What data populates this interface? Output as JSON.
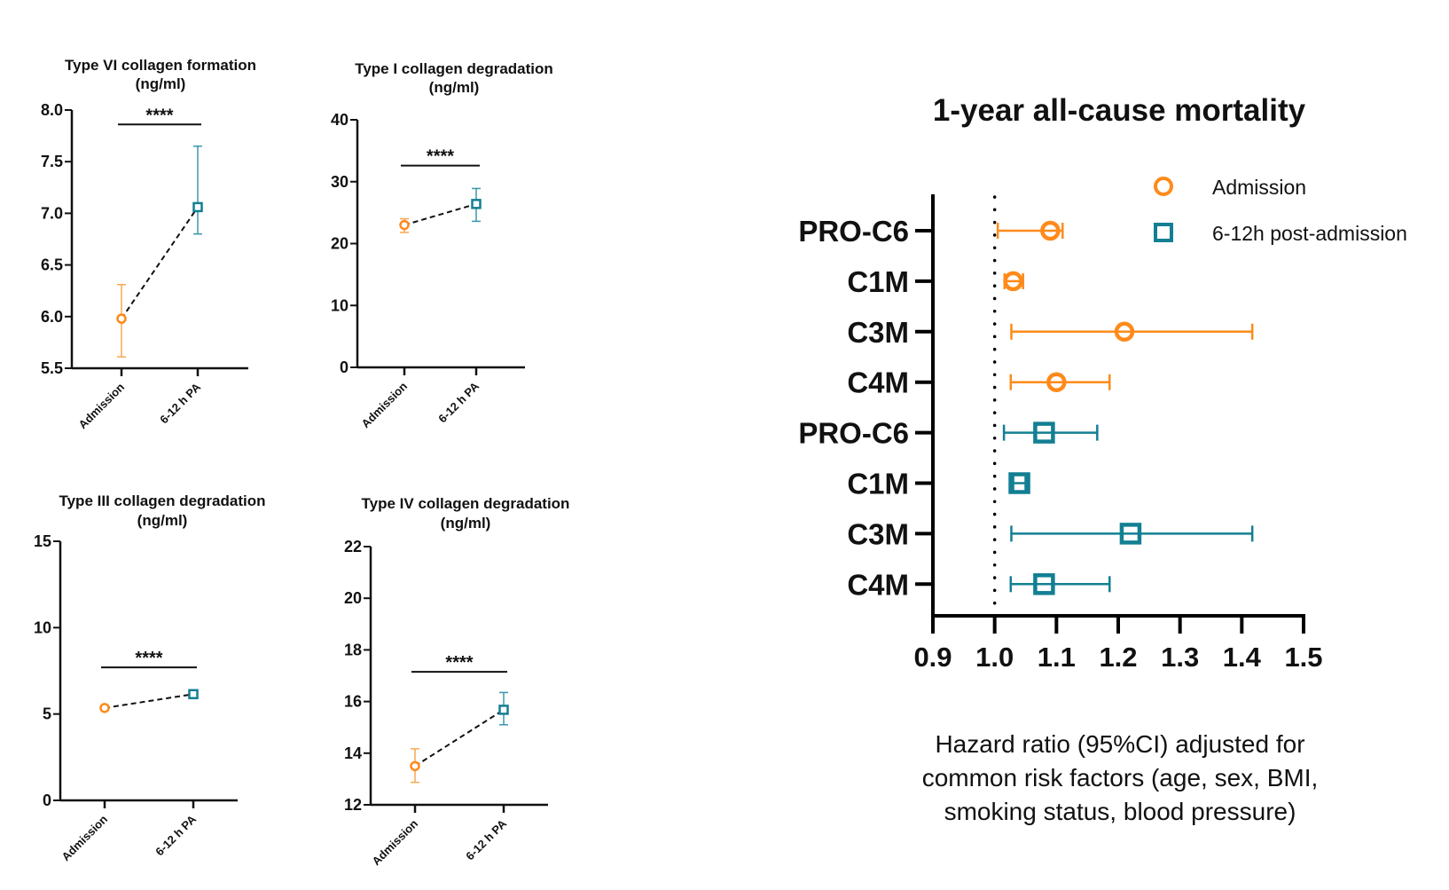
{
  "colors": {
    "admission": "#ff8a1a",
    "admission_light": "#f7a850",
    "post": "#137f93",
    "post_light": "#3a97aa",
    "axis": "#111111"
  },
  "chart_data": [
    {
      "type": "scatter",
      "title": "Type VI collagen formation",
      "subtitle": "(ng/ml)",
      "categories": [
        "Admission",
        "6-12 h PA"
      ],
      "ylim": [
        5.5,
        8.0
      ],
      "yticks": [
        "5.5",
        "6.0",
        "6.5",
        "7.0",
        "7.5",
        "8.0"
      ],
      "series": [
        {
          "name": "Admission",
          "value": 5.98,
          "ci_low": 5.61,
          "ci_high": 6.31
        },
        {
          "name": "6-12 h PA",
          "value": 7.06,
          "ci_low": 6.8,
          "ci_high": 7.65
        }
      ],
      "significance": "****",
      "significance_level": 7.86,
      "connector": "dashed"
    },
    {
      "type": "scatter",
      "title": "Type I collagen degradation",
      "subtitle": "(ng/ml)",
      "categories": [
        "Admission",
        "6-12 h PA"
      ],
      "ylim": [
        0,
        40
      ],
      "yticks": [
        "0",
        "10",
        "20",
        "30",
        "40"
      ],
      "series": [
        {
          "name": "Admission",
          "value": 23.0,
          "ci_low": 21.8,
          "ci_high": 24.0
        },
        {
          "name": "6-12 h PA",
          "value": 26.4,
          "ci_low": 23.6,
          "ci_high": 28.9
        }
      ],
      "significance": "****",
      "significance_level": 32.6,
      "connector": "dashed"
    },
    {
      "type": "scatter",
      "title": "Type III collagen degradation",
      "subtitle": "(ng/ml)",
      "categories": [
        "Admission",
        "6-12 h PA"
      ],
      "ylim": [
        0,
        15
      ],
      "yticks": [
        "0",
        "5",
        "10",
        "15"
      ],
      "series": [
        {
          "name": "Admission",
          "value": 5.35,
          "ci_low": 5.2,
          "ci_high": 5.5
        },
        {
          "name": "6-12 h PA",
          "value": 6.15,
          "ci_low": 6.0,
          "ci_high": 6.3
        }
      ],
      "significance": "****",
      "significance_level": 7.7,
      "connector": "dashed"
    },
    {
      "type": "scatter",
      "title": "Type IV collagen degradation",
      "subtitle": "(ng/ml)",
      "categories": [
        "Admission",
        "6-12 h PA"
      ],
      "ylim": [
        12,
        22
      ],
      "yticks": [
        "12",
        "14",
        "16",
        "18",
        "20",
        "22"
      ],
      "series": [
        {
          "name": "Admission",
          "value": 13.5,
          "ci_low": 12.87,
          "ci_high": 14.17
        },
        {
          "name": "6-12 h PA",
          "value": 15.68,
          "ci_low": 15.1,
          "ci_high": 16.35
        }
      ],
      "significance": "****",
      "significance_level": 17.15,
      "connector": "dashed"
    },
    {
      "type": "forest",
      "title": "1-year all-cause mortality",
      "xlabel": "Hazard ratio (95%CI) adjusted for common risk factors (age, sex, BMI, smoking status, blood pressure)",
      "xlabel_lines": [
        "Hazard ratio (95%CI) adjusted for",
        "common risk factors (age, sex, BMI,",
        "smoking status, blood pressure)"
      ],
      "xlim": [
        0.9,
        1.5
      ],
      "xticks": [
        "0.9",
        "1.0",
        "1.1",
        "1.2",
        "1.3",
        "1.4",
        "1.5"
      ],
      "reference_line": 1.0,
      "legend": {
        "position": "top-right",
        "entries": [
          {
            "name": "Admission",
            "marker": "circle"
          },
          {
            "name": "6-12h post-admission",
            "marker": "square"
          }
        ]
      },
      "rows": [
        {
          "label": "PRO-C6",
          "group": "Admission",
          "hr": 1.09,
          "ci_low": 1.005,
          "ci_high": 1.11
        },
        {
          "label": "C1M",
          "group": "Admission",
          "hr": 1.03,
          "ci_low": 1.016,
          "ci_high": 1.046
        },
        {
          "label": "C3M",
          "group": "Admission",
          "hr": 1.21,
          "ci_low": 1.027,
          "ci_high": 1.417
        },
        {
          "label": "C4M",
          "group": "Admission",
          "hr": 1.1,
          "ci_low": 1.026,
          "ci_high": 1.186
        },
        {
          "label": "PRO-C6",
          "group": "6-12h post-admission",
          "hr": 1.08,
          "ci_low": 1.015,
          "ci_high": 1.166
        },
        {
          "label": "C1M",
          "group": "6-12h post-admission",
          "hr": 1.04,
          "ci_low": 1.03,
          "ci_high": 1.05
        },
        {
          "label": "C3M",
          "group": "6-12h post-admission",
          "hr": 1.22,
          "ci_low": 1.027,
          "ci_high": 1.417
        },
        {
          "label": "C4M",
          "group": "6-12h post-admission",
          "hr": 1.08,
          "ci_low": 1.026,
          "ci_high": 1.186
        }
      ]
    }
  ]
}
